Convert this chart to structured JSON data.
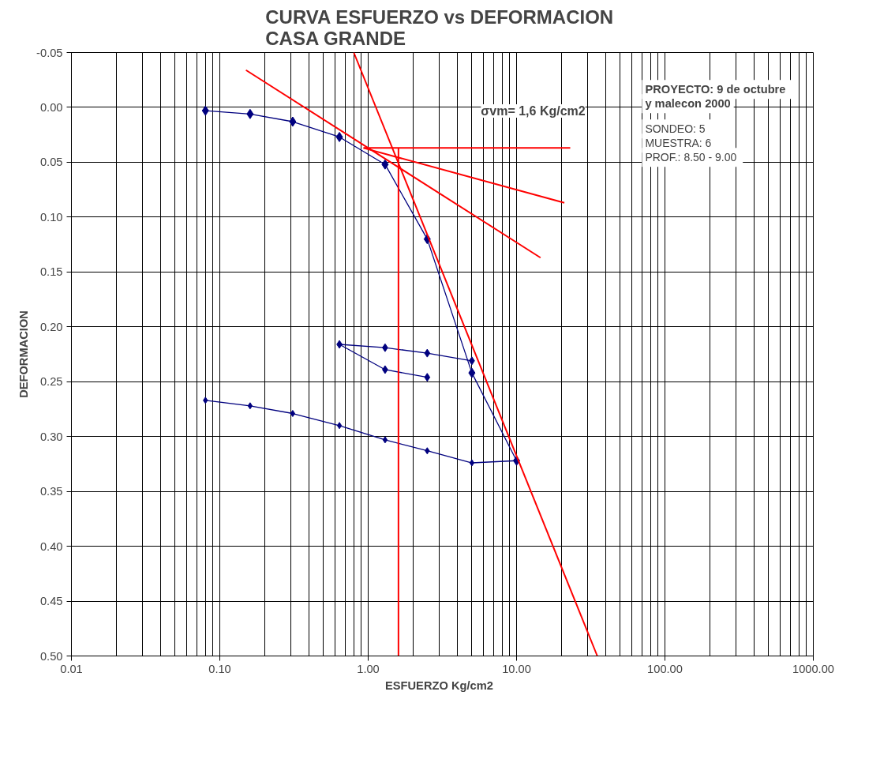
{
  "chart_data": {
    "type": "line",
    "title": "CURVA  ESFUERZO vs DEFORMACION\nCASA GRANDE",
    "xlabel": "ESFUERZO   Kg/cm2",
    "ylabel": "DEFORMACION",
    "log": "x",
    "xlim": [
      0.01,
      1000
    ],
    "ylim": [
      0.5,
      -0.05
    ],
    "xticks": [
      {
        "value": 0.01,
        "label": "0.01"
      },
      {
        "value": 0.1,
        "label": "0.10"
      },
      {
        "value": 1,
        "label": "1.00"
      },
      {
        "value": 10,
        "label": "10.00"
      },
      {
        "value": 100,
        "label": "100.00"
      },
      {
        "value": 1000,
        "label": "1000.00"
      }
    ],
    "yticks": [
      {
        "value": -0.05,
        "label": "-0.05"
      },
      {
        "value": 0,
        "label": "0.00"
      },
      {
        "value": 0.05,
        "label": "0.05"
      },
      {
        "value": 0.1,
        "label": "0.10"
      },
      {
        "value": 0.15,
        "label": "0.15"
      },
      {
        "value": 0.2,
        "label": "0.20"
      },
      {
        "value": 0.25,
        "label": "0.25"
      },
      {
        "value": 0.3,
        "label": "0.30"
      },
      {
        "value": 0.35,
        "label": "0.35"
      },
      {
        "value": 0.4,
        "label": "0.40"
      },
      {
        "value": 0.45,
        "label": "0.45"
      },
      {
        "value": 0.5,
        "label": "0.50"
      }
    ],
    "grid": true,
    "marker": "diamond",
    "line_style": "solid",
    "series": [
      {
        "color": "#00007f",
        "x": [
          0.08,
          0.16,
          0.31,
          0.64,
          1.3,
          2.5,
          5,
          10
        ],
        "values": [
          0.003,
          0.006,
          0.013,
          0.027,
          0.052,
          0.12,
          0.242,
          0.322
        ]
      },
      {
        "color": "#00007f",
        "x": [
          5,
          2.5,
          1.3,
          0.64,
          1.3,
          2.5
        ],
        "values": [
          0.231,
          0.224,
          0.219,
          0.216,
          0.239,
          0.246
        ]
      },
      {
        "color": "#00007f",
        "x": [
          10,
          5,
          2.5,
          1.3,
          0.64,
          0.31,
          0.16,
          0.08
        ],
        "values": [
          0.322,
          0.324,
          0.313,
          0.303,
          0.29,
          0.279,
          0.272,
          0.267
        ]
      },
      {
        "color": "#ff0000",
        "marker": "none",
        "x": [
          0.8,
          35
        ],
        "values": [
          -0.05,
          0.5
        ]
      },
      {
        "color": "#ff0000",
        "marker": "none",
        "x": [
          0.93,
          23
        ],
        "values": [
          0.037,
          0.037
        ]
      },
      {
        "color": "#ff0000",
        "marker": "none",
        "x": [
          0.93,
          21
        ],
        "values": [
          0.037,
          0.087
        ]
      },
      {
        "color": "#ff0000",
        "marker": "none",
        "x": [
          0.15,
          14.5
        ],
        "values": [
          -0.034,
          0.137
        ]
      },
      {
        "color": "#ff0000",
        "marker": "none",
        "x": [
          1.6,
          1.6
        ],
        "values": [
          0.037,
          0.5
        ]
      }
    ],
    "annotations": [
      "σvm= 1,6 Kg/cm2",
      "PROYECTO:  9 de octubre\ny malecon 2000",
      "SONDEO:  5",
      "MUESTRA:  6",
      "PROF.:  8.50 - 9.00"
    ]
  }
}
